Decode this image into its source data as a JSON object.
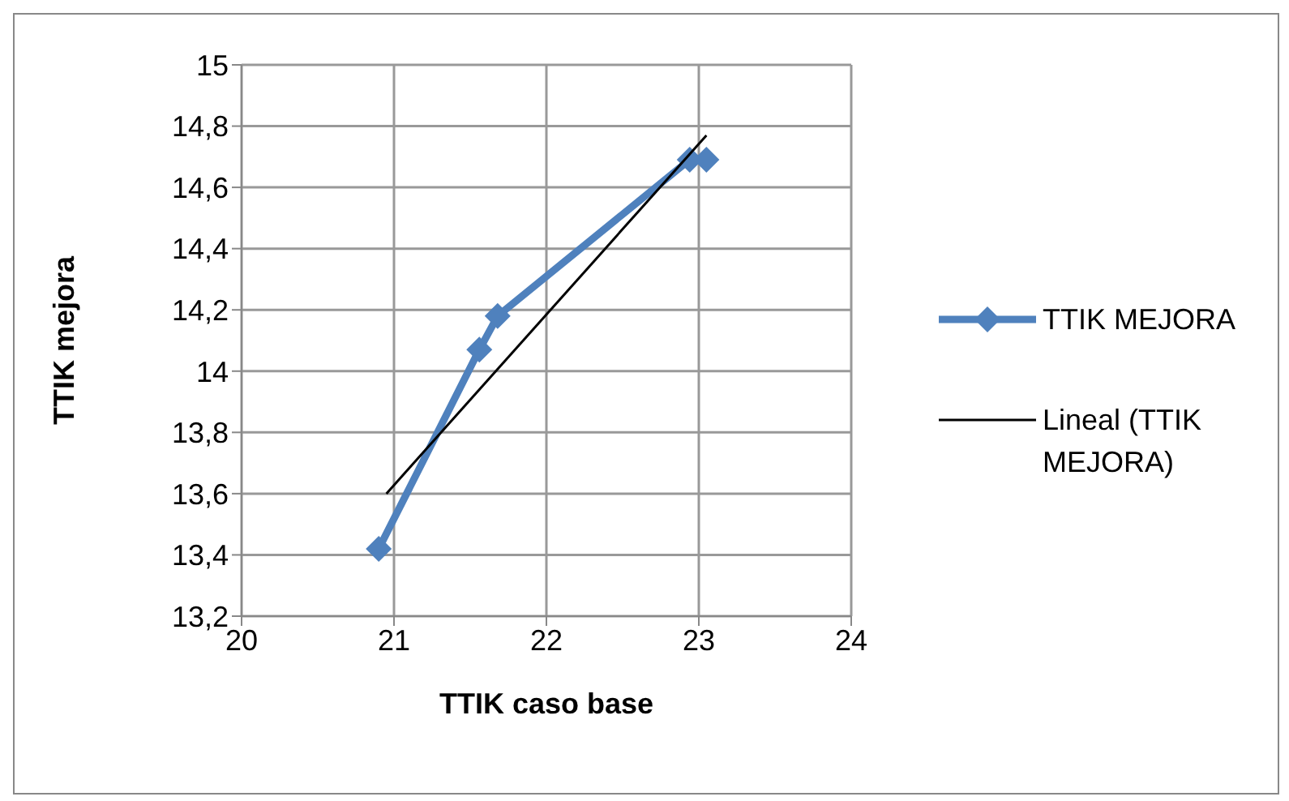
{
  "chart_data": {
    "type": "line",
    "xlabel": "TTIK caso base",
    "ylabel": "TTIK mejora",
    "xlim": [
      20,
      24
    ],
    "xticks": [
      20,
      21,
      22,
      23,
      24
    ],
    "ylim": [
      13.2,
      15
    ],
    "yticks": [
      {
        "value": 13.2,
        "label": "13,2"
      },
      {
        "value": 13.4,
        "label": "13,4"
      },
      {
        "value": 13.6,
        "label": "13,6"
      },
      {
        "value": 13.8,
        "label": "13,8"
      },
      {
        "value": 14,
        "label": "14"
      },
      {
        "value": 14.2,
        "label": "14,2"
      },
      {
        "value": 14.4,
        "label": "14,4"
      },
      {
        "value": 14.6,
        "label": "14,6"
      },
      {
        "value": 14.8,
        "label": "14,8"
      },
      {
        "value": 15,
        "label": "15"
      }
    ],
    "grid": true,
    "legend": "right",
    "series": [
      {
        "name": "TTIK MEJORA",
        "color": "#4f81bd",
        "marker": "diamond",
        "x": [
          20.9,
          21.56,
          21.68,
          22.94,
          23.05
        ],
        "values": [
          13.42,
          14.07,
          14.18,
          14.69,
          14.69
        ]
      },
      {
        "name": "Lineal (TTIK MEJORA)",
        "color": "#000000",
        "marker": "none",
        "x": [
          20.95,
          23.05
        ],
        "values": [
          13.6,
          14.77
        ]
      }
    ]
  }
}
